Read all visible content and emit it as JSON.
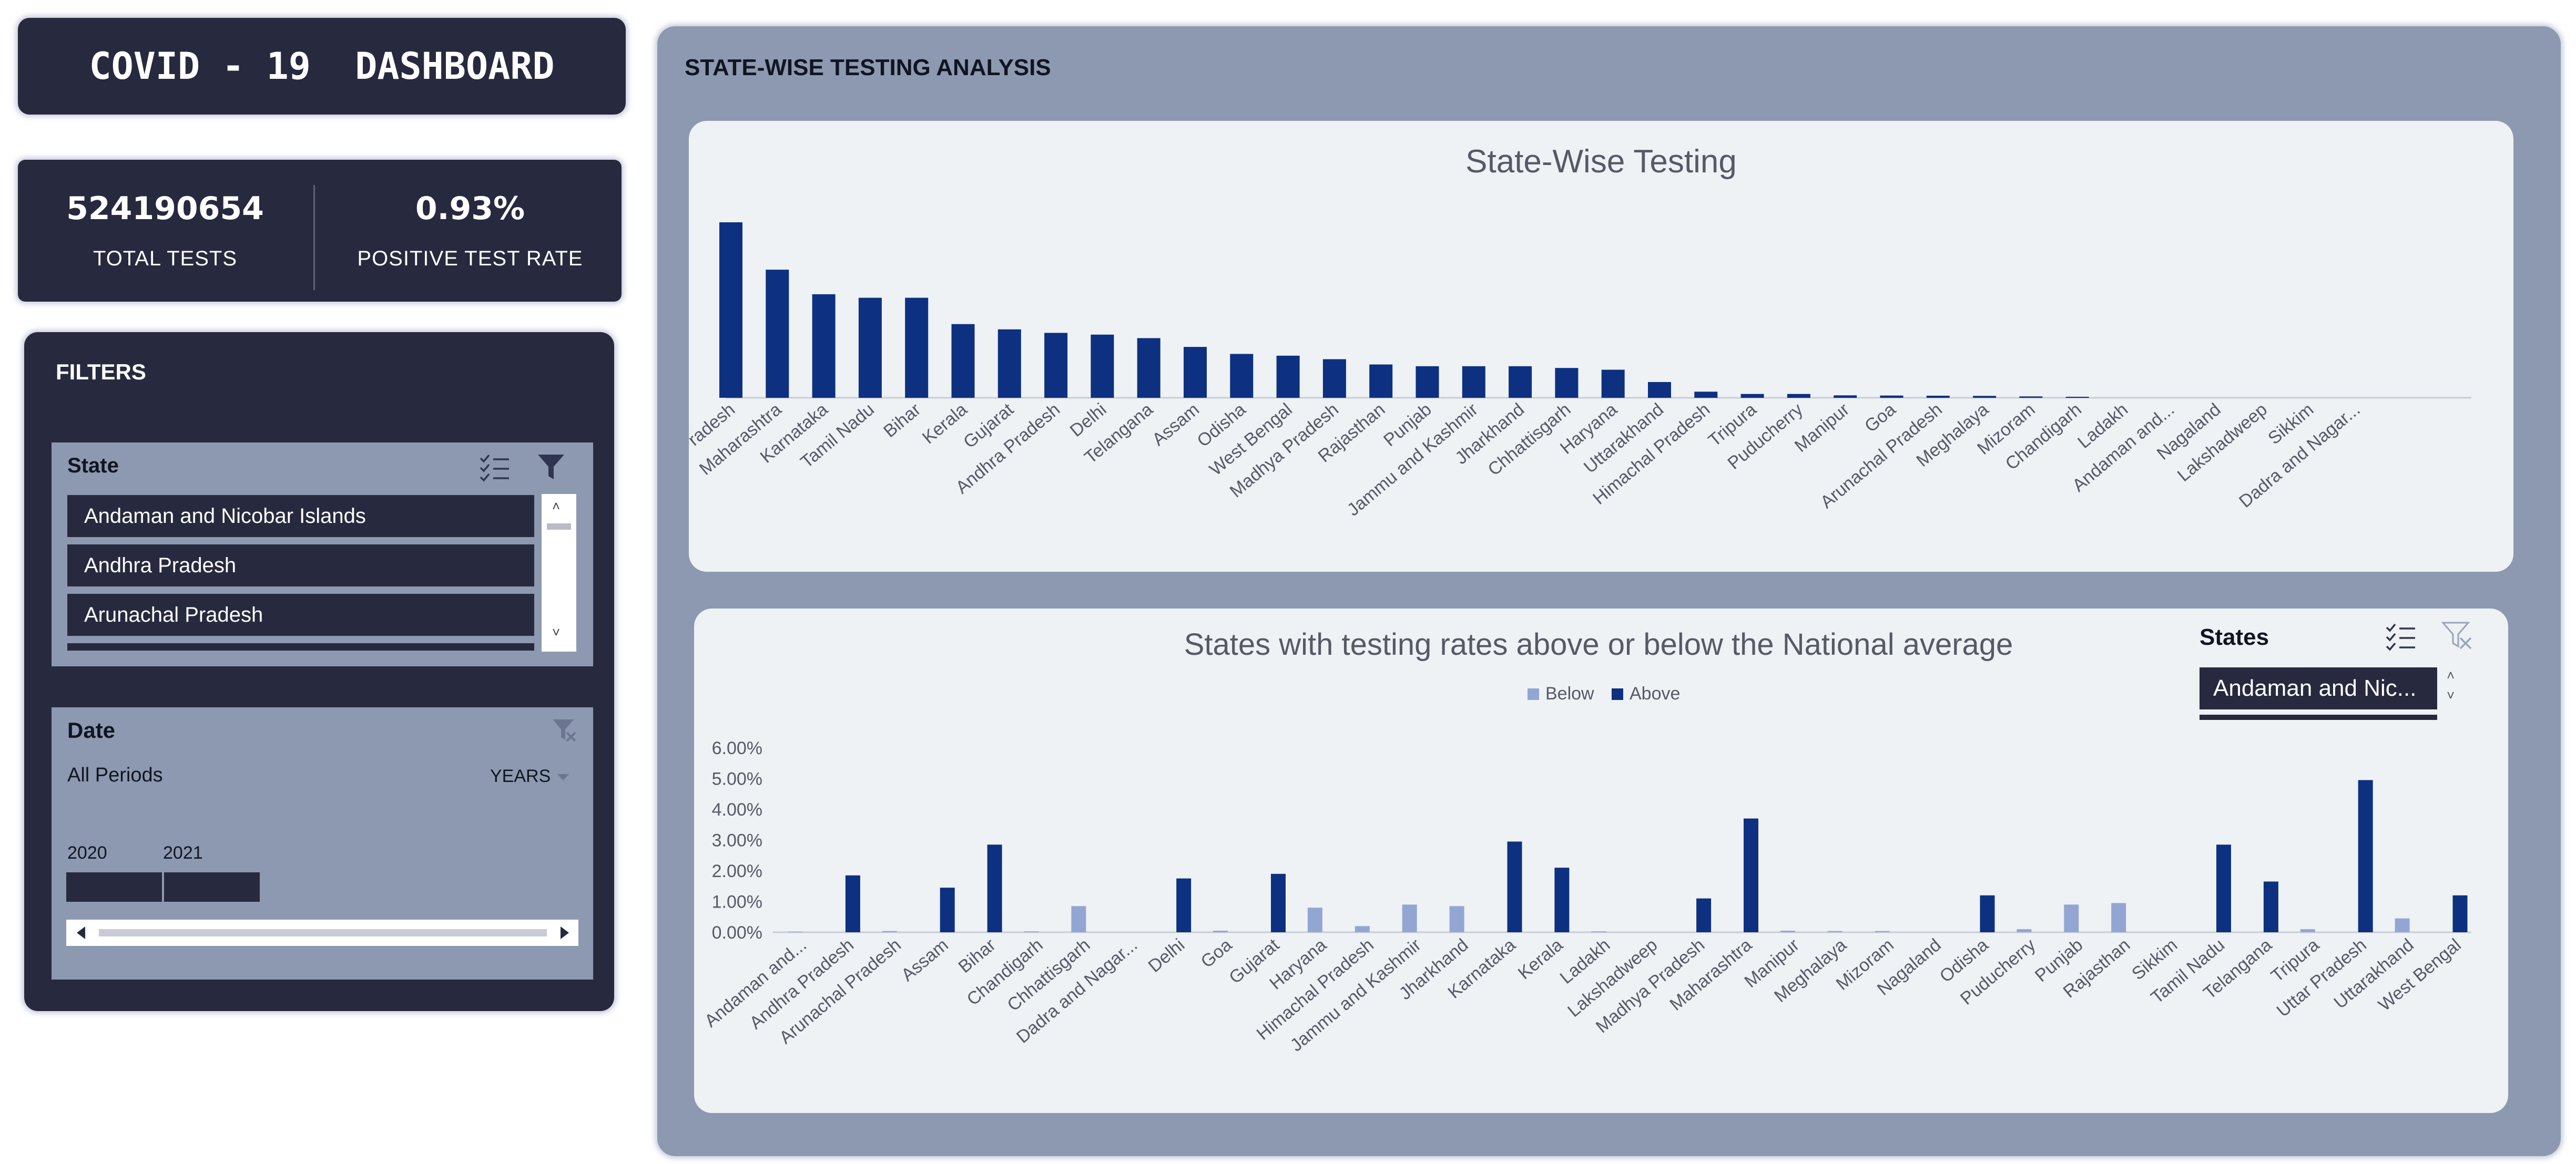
{
  "dashboard": {
    "title": "COVID - 19  DASHBOARD"
  },
  "kpis": {
    "total_tests": {
      "value": "524190654",
      "label": "TOTAL TESTS"
    },
    "positive_rate": {
      "value": "0.93%",
      "label": "POSITIVE TEST RATE"
    }
  },
  "filters": {
    "title": "FILTERS",
    "state_slicer": {
      "title": "State",
      "items": [
        "Andaman and Nicobar Islands",
        "Andhra Pradesh",
        "Arunachal Pradesh"
      ],
      "icons": [
        "multi-select-icon",
        "filter-icon"
      ]
    },
    "date_slicer": {
      "title": "Date",
      "period": "All Periods",
      "granularity": "YEARS",
      "years": [
        "2020",
        "2021"
      ],
      "icons": [
        "clear-filter-icon",
        "dropdown-arrow-icon",
        "scroll-left-icon",
        "scroll-right-icon"
      ]
    }
  },
  "main": {
    "title": "STATE-WISE TESTING ANALYSIS",
    "states_slicer": {
      "title": "States",
      "selected": "Andaman and Nic..."
    }
  },
  "colors": {
    "navy": "#272a3e",
    "above": "#0e3080",
    "below": "#93a6d3",
    "panel": "#8d99b0",
    "card": "#eef2f5"
  },
  "chart_data": [
    {
      "type": "bar",
      "title": "State-Wise Testing",
      "categories": [
        "Uttar Pradesh",
        "Maharashtra",
        "Karnataka",
        "Tamil Nadu",
        "Bihar",
        "Kerala",
        "Gujarat",
        "Andhra Pradesh",
        "Delhi",
        "Telangana",
        "Assam",
        "Odisha",
        "West Bengal",
        "Madhya Pradesh",
        "Rajasthan",
        "Punjab",
        "Jammu and Kashmir",
        "Jharkhand",
        "Chhattisgarh",
        "Haryana",
        "Uttarakhand",
        "Himachal Pradesh",
        "Tripura",
        "Puducherry",
        "Manipur",
        "Goa",
        "Arunachal Pradesh",
        "Meghalaya",
        "Mizoram",
        "Chandigarh",
        "Ladakh",
        "Andaman and...",
        "Nagaland",
        "Lakshadweep",
        "Sikkim",
        "Dadra and Nagar..."
      ],
      "values": [
        100,
        73,
        59,
        57,
        57,
        42,
        39,
        37,
        36,
        34,
        29,
        25,
        24,
        22,
        19,
        18,
        18,
        18,
        17,
        16,
        9,
        3.5,
        2.2,
        2.2,
        1.4,
        1.3,
        1.2,
        1.1,
        0.8,
        0.6,
        0,
        0,
        0,
        0,
        0,
        0
      ],
      "ylim": [
        0,
        100
      ],
      "gridlines": false,
      "color": "#0e3080"
    },
    {
      "type": "bar",
      "title": "States with testing rates above or below the National average",
      "categories": [
        "Andaman and...",
        "Andhra Pradesh",
        "Arunachal Pradesh",
        "Assam",
        "Bihar",
        "Chandigarh",
        "Chhattisgarh",
        "Dadra and Nagar...",
        "Delhi",
        "Goa",
        "Gujarat",
        "Haryana",
        "Himachal Pradesh",
        "Jammu and Kashmir",
        "Jharkhand",
        "Karnataka",
        "Kerala",
        "Ladakh",
        "Lakshadweep",
        "Madhya Pradesh",
        "Maharashtra",
        "Manipur",
        "Meghalaya",
        "Mizoram",
        "Nagaland",
        "Odisha",
        "Puducherry",
        "Punjab",
        "Rajasthan",
        "Sikkim",
        "Tamil Nadu",
        "Telangana",
        "Tripura",
        "Uttar Pradesh",
        "Uttarakhand",
        "West Bengal"
      ],
      "series": [
        {
          "name": "Below",
          "color": "#93a6d3",
          "values": [
            0.02,
            null,
            0.04,
            null,
            null,
            0.03,
            0.85,
            null,
            null,
            0.05,
            null,
            0.8,
            0.2,
            0.9,
            0.85,
            null,
            null,
            0.03,
            null,
            null,
            null,
            0.05,
            0.04,
            0.04,
            null,
            null,
            0.1,
            0.9,
            0.95,
            null,
            null,
            null,
            0.1,
            null,
            0.45,
            null
          ]
        },
        {
          "name": "Above",
          "color": "#0e3080",
          "values": [
            null,
            1.85,
            null,
            1.45,
            2.85,
            null,
            null,
            null,
            1.75,
            null,
            1.9,
            null,
            null,
            null,
            null,
            2.95,
            2.1,
            null,
            null,
            1.1,
            3.7,
            null,
            null,
            null,
            null,
            1.2,
            null,
            null,
            null,
            null,
            2.85,
            1.65,
            null,
            4.95,
            null,
            1.2
          ]
        }
      ],
      "ylim": [
        0,
        6
      ],
      "yticks": [
        "0.00%",
        "1.00%",
        "2.00%",
        "3.00%",
        "4.00%",
        "5.00%",
        "6.00%"
      ],
      "legend": "top-center",
      "gridlines": false
    }
  ]
}
